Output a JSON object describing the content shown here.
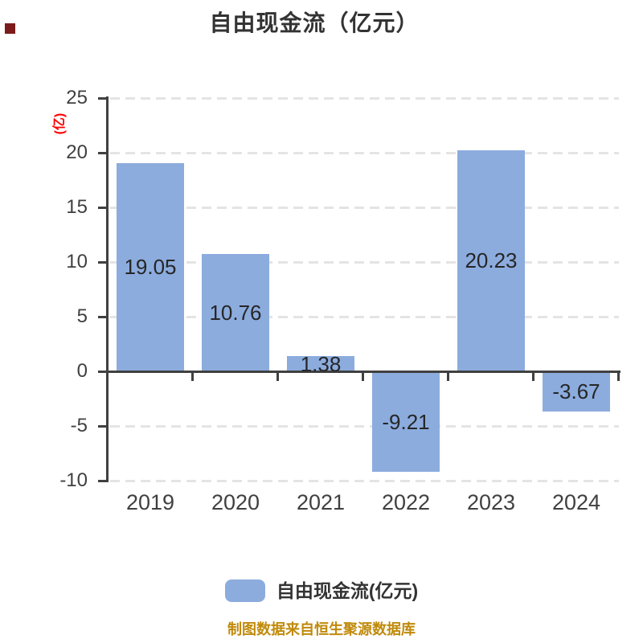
{
  "chart_data": {
    "type": "bar",
    "title": "自由现金流（亿元）",
    "ylabel": "(亿)",
    "categories": [
      "2019",
      "2020",
      "2021",
      "2022",
      "2023",
      "2024"
    ],
    "values": [
      19.05,
      10.76,
      1.38,
      -9.21,
      20.23,
      -3.67
    ],
    "value_labels": [
      "19.05",
      "10.76",
      "1.38",
      "-9.21",
      "20.23",
      "-3.67"
    ],
    "y_ticks": [
      25,
      20,
      15,
      10,
      5,
      0,
      -5,
      -10
    ],
    "ylim": [
      -10,
      25
    ],
    "grid": "horizontal-dashed",
    "legend_position": "bottom-center",
    "legend": [
      {
        "label": "自由现金流(亿元)",
        "color": "#8CACDE"
      }
    ],
    "footnote": "制图数据来自恒生聚源数据库",
    "colors": {
      "bar": "#8CACDE",
      "axis": "#404040",
      "grid": "#E4E4E4",
      "title": "#333333",
      "value_label": "#262626",
      "ylabel_red": "#FF0000",
      "footnote_gold": "#C08A0A",
      "corner_mark": "#7B1B1B"
    }
  }
}
